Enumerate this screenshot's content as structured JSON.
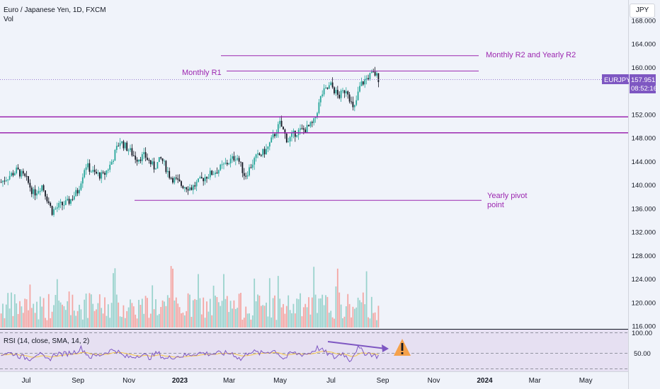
{
  "header": {
    "symbol_title": "Euro / Japanese Yen, 1D, FXCM",
    "volume_label": "Vol",
    "currency_button": "JPY"
  },
  "price_tag": {
    "ticker": "EURJPY",
    "price": "157.951",
    "countdown": "08:52:16"
  },
  "annotations": {
    "monthly_r1": "Monthly R1",
    "monthly_r2": "Monthly R2 and Yearly R2",
    "yearly_pivot_line1": "Yearly pivot",
    "yearly_pivot_line2": "point"
  },
  "rsi": {
    "label": "RSI (14, close, SMA, 14, 2)",
    "upper_label": "100.00",
    "mid_label": "50.00"
  },
  "colors": {
    "up": "#26a69a",
    "down": "#131722",
    "vol_up": "#9ad3cd",
    "vol_down": "#f4a6a3",
    "level": "#9c27b0",
    "rsi": "#7e57c2",
    "rsi_sma": "#f7c948",
    "warning": "#f5a14b"
  },
  "chart_data": {
    "type": "candlestick",
    "title": "Euro / Japanese Yen, 1D, FXCM",
    "y_ticks": [
      168,
      164,
      160,
      156,
      152,
      148,
      144,
      140,
      136,
      132,
      128,
      124,
      120,
      116
    ],
    "y_tick_labels": [
      "168.000",
      "164.000",
      "160.000",
      "",
      "152.000",
      "148.000",
      "144.000",
      "140.000",
      "136.000",
      "132.000",
      "128.000",
      "124.000",
      "120.000",
      "116.000"
    ],
    "x_tick_labels": [
      "Jul",
      "Sep",
      "Nov",
      "2023",
      "Mar",
      "May",
      "Jul",
      "Sep",
      "Nov",
      "2024",
      "Mar",
      "May"
    ],
    "x_tick_dates": [
      "2022-07-01",
      "2022-09-01",
      "2022-11-01",
      "2023-01-01",
      "2023-03-01",
      "2023-05-01",
      "2023-07-01",
      "2023-09-01",
      "2023-11-01",
      "2024-01-01",
      "2024-03-01",
      "2024-05-01"
    ],
    "bold_x_labels": [
      "2023",
      "2024"
    ],
    "last_price": 157.951,
    "price_path": [
      [
        "2022-06-01",
        140.5
      ],
      [
        "2022-06-10",
        141.5
      ],
      [
        "2022-06-20",
        142.5
      ],
      [
        "2022-07-01",
        141.0
      ],
      [
        "2022-07-10",
        138.5
      ],
      [
        "2022-07-20",
        140.0
      ],
      [
        "2022-08-01",
        135.5
      ],
      [
        "2022-08-10",
        136.5
      ],
      [
        "2022-08-20",
        137.0
      ],
      [
        "2022-09-01",
        139.0
      ],
      [
        "2022-09-10",
        143.5
      ],
      [
        "2022-09-20",
        142.0
      ],
      [
        "2022-10-01",
        141.5
      ],
      [
        "2022-10-10",
        143.5
      ],
      [
        "2022-10-21",
        147.5
      ],
      [
        "2022-11-01",
        146.0
      ],
      [
        "2022-11-10",
        144.5
      ],
      [
        "2022-11-20",
        145.0
      ],
      [
        "2022-12-01",
        143.0
      ],
      [
        "2022-12-10",
        144.5
      ],
      [
        "2022-12-20",
        141.5
      ],
      [
        "2023-01-03",
        140.0
      ],
      [
        "2023-01-15",
        139.5
      ],
      [
        "2023-02-01",
        141.5
      ],
      [
        "2023-02-15",
        142.5
      ],
      [
        "2023-03-01",
        144.0
      ],
      [
        "2023-03-10",
        145.0
      ],
      [
        "2023-03-20",
        141.5
      ],
      [
        "2023-04-01",
        144.5
      ],
      [
        "2023-04-15",
        146.0
      ],
      [
        "2023-05-01",
        150.5
      ],
      [
        "2023-05-10",
        147.5
      ],
      [
        "2023-05-20",
        149.0
      ],
      [
        "2023-06-01",
        149.5
      ],
      [
        "2023-06-10",
        150.5
      ],
      [
        "2023-06-20",
        155.5
      ],
      [
        "2023-07-01",
        157.0
      ],
      [
        "2023-07-10",
        155.0
      ],
      [
        "2023-07-20",
        156.5
      ],
      [
        "2023-07-28",
        152.5
      ],
      [
        "2023-08-05",
        157.0
      ],
      [
        "2023-08-15",
        158.5
      ],
      [
        "2023-08-22",
        159.0
      ],
      [
        "2023-08-28",
        157.951
      ]
    ],
    "levels": [
      {
        "name": "Monthly R2 and Yearly R2",
        "value": 162.0
      },
      {
        "name": "Monthly R1",
        "value": 159.4
      },
      {
        "name": "",
        "value": 151.6
      },
      {
        "name": "",
        "value": 148.9
      },
      {
        "name": "Yearly pivot point",
        "value": 137.4
      }
    ],
    "rsi_range": [
      0,
      100
    ],
    "rsi_ticks": [
      100,
      50
    ],
    "volume": "columns along the bottom of the price pane, colored by candle direction"
  }
}
